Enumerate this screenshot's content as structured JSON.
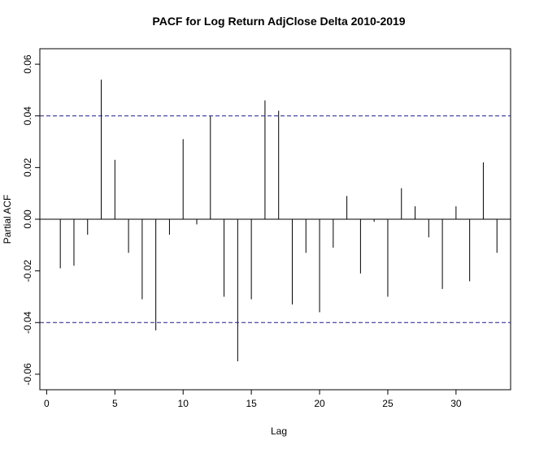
{
  "chart_data": {
    "type": "bar",
    "title": "PACF for Log Return AdjClose Delta 2010-2019",
    "xlabel": "Lag",
    "ylabel": "Partial ACF",
    "xlim": [
      -0.5,
      34.0
    ],
    "ylim": [
      -0.066,
      0.066
    ],
    "x_ticks": [
      0,
      5,
      10,
      15,
      20,
      25,
      30
    ],
    "x_tick_labels": [
      "0",
      "5",
      "10",
      "15",
      "20",
      "25",
      "30"
    ],
    "y_ticks": [
      -0.06,
      -0.04,
      -0.02,
      0.0,
      0.02,
      0.04,
      0.06
    ],
    "y_tick_labels": [
      "-0.06",
      "-0.04",
      "-0.02",
      "0.00",
      "0.02",
      "0.04",
      "0.06"
    ],
    "confidence_bounds": [
      0.04,
      -0.04
    ],
    "bound_color": "#1a1a8c",
    "bar_color": "#000000",
    "grid": false,
    "lags": [
      1,
      2,
      3,
      4,
      5,
      6,
      7,
      8,
      9,
      10,
      11,
      12,
      13,
      14,
      15,
      16,
      17,
      18,
      19,
      20,
      21,
      22,
      23,
      24,
      25,
      26,
      27,
      28,
      29,
      30,
      31,
      32,
      33
    ],
    "values": [
      -0.019,
      -0.018,
      -0.006,
      0.054,
      0.023,
      -0.013,
      -0.031,
      -0.043,
      -0.006,
      0.031,
      -0.002,
      0.04,
      -0.03,
      -0.055,
      -0.031,
      0.046,
      0.042,
      -0.033,
      -0.013,
      -0.036,
      -0.011,
      0.009,
      -0.021,
      -0.001,
      -0.03,
      0.012,
      0.005,
      -0.007,
      -0.027,
      0.005,
      -0.024,
      0.022,
      -0.013
    ]
  }
}
